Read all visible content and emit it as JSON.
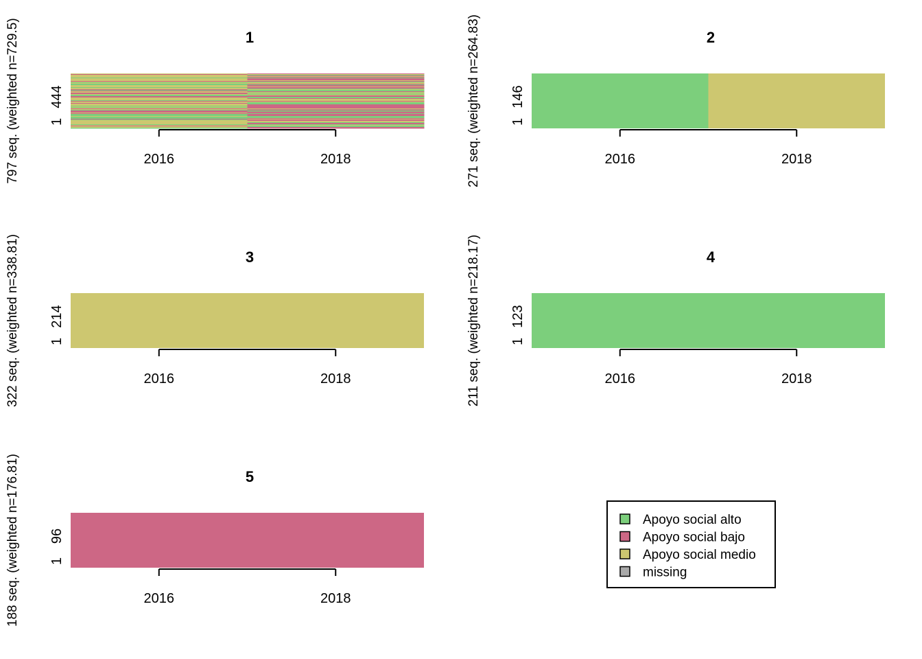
{
  "colors": {
    "Apoyo social alto": "#7ccf7c",
    "Apoyo social bajo": "#cd6785",
    "Apoyo social medio": "#cdc770",
    "missing": "#a9a9a9"
  },
  "chart_data": [
    {
      "type": "heatmap",
      "title": "1",
      "ylabel": "797 seq. (weighted n=729.5)",
      "x_ticks": [
        "2016",
        "2018"
      ],
      "y_ticks": [
        "1",
        "444"
      ],
      "columns": [
        "2016",
        "2018"
      ],
      "cells": "mixed",
      "note": "index plot of 797 sequences; mixed states across both periods"
    },
    {
      "type": "heatmap",
      "title": "2",
      "ylabel": "271 seq. (weighted n=264.83)",
      "x_ticks": [
        "2016",
        "2018"
      ],
      "y_ticks": [
        "1",
        "146"
      ],
      "columns": [
        "2016",
        "2018"
      ],
      "cells": [
        "Apoyo social alto",
        "Apoyo social medio"
      ]
    },
    {
      "type": "heatmap",
      "title": "3",
      "ylabel": "322 seq. (weighted n=338.81)",
      "x_ticks": [
        "2016",
        "2018"
      ],
      "y_ticks": [
        "1",
        "214"
      ],
      "columns": [
        "2016",
        "2018"
      ],
      "cells": [
        "Apoyo social medio",
        "Apoyo social medio"
      ]
    },
    {
      "type": "heatmap",
      "title": "4",
      "ylabel": "211 seq. (weighted n=218.17)",
      "x_ticks": [
        "2016",
        "2018"
      ],
      "y_ticks": [
        "1",
        "123"
      ],
      "columns": [
        "2016",
        "2018"
      ],
      "cells": [
        "Apoyo social alto",
        "Apoyo social alto"
      ]
    },
    {
      "type": "heatmap",
      "title": "5",
      "ylabel": "188 seq. (weighted n=176.81)",
      "x_ticks": [
        "2016",
        "2018"
      ],
      "y_ticks": [
        "1",
        "96"
      ],
      "columns": [
        "2016",
        "2018"
      ],
      "cells": [
        "Apoyo social bajo",
        "Apoyo social bajo"
      ]
    }
  ],
  "legend": {
    "placement": "bottom-right",
    "items": [
      "Apoyo social alto",
      "Apoyo social bajo",
      "Apoyo social medio",
      "missing"
    ]
  }
}
